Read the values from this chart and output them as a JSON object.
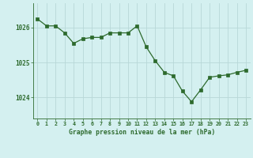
{
  "x": [
    0,
    1,
    2,
    3,
    4,
    5,
    6,
    7,
    8,
    9,
    10,
    11,
    12,
    13,
    14,
    15,
    16,
    17,
    18,
    19,
    20,
    21,
    22,
    23
  ],
  "y": [
    1026.25,
    1026.05,
    1026.05,
    1025.85,
    1025.55,
    1025.68,
    1025.72,
    1025.72,
    1025.85,
    1025.85,
    1025.85,
    1026.05,
    1025.45,
    1025.05,
    1024.72,
    1024.62,
    1024.18,
    1023.88,
    1024.22,
    1024.58,
    1024.62,
    1024.65,
    1024.72,
    1024.78
  ],
  "line_color": "#2d6a2d",
  "marker_color": "#2d6a2d",
  "bg_color": "#d4f0f0",
  "grid_color": "#b8d8d8",
  "xlabel": "Graphe pression niveau de la mer (hPa)",
  "xlabel_color": "#2d6a2d",
  "tick_color": "#2d6a2d",
  "yticks": [
    1024,
    1025,
    1026
  ],
  "ylim": [
    1023.4,
    1026.7
  ],
  "xlim": [
    -0.5,
    23.5
  ],
  "xticks": [
    0,
    1,
    2,
    3,
    4,
    5,
    6,
    7,
    8,
    9,
    10,
    11,
    12,
    13,
    14,
    15,
    16,
    17,
    18,
    19,
    20,
    21,
    22,
    23
  ]
}
